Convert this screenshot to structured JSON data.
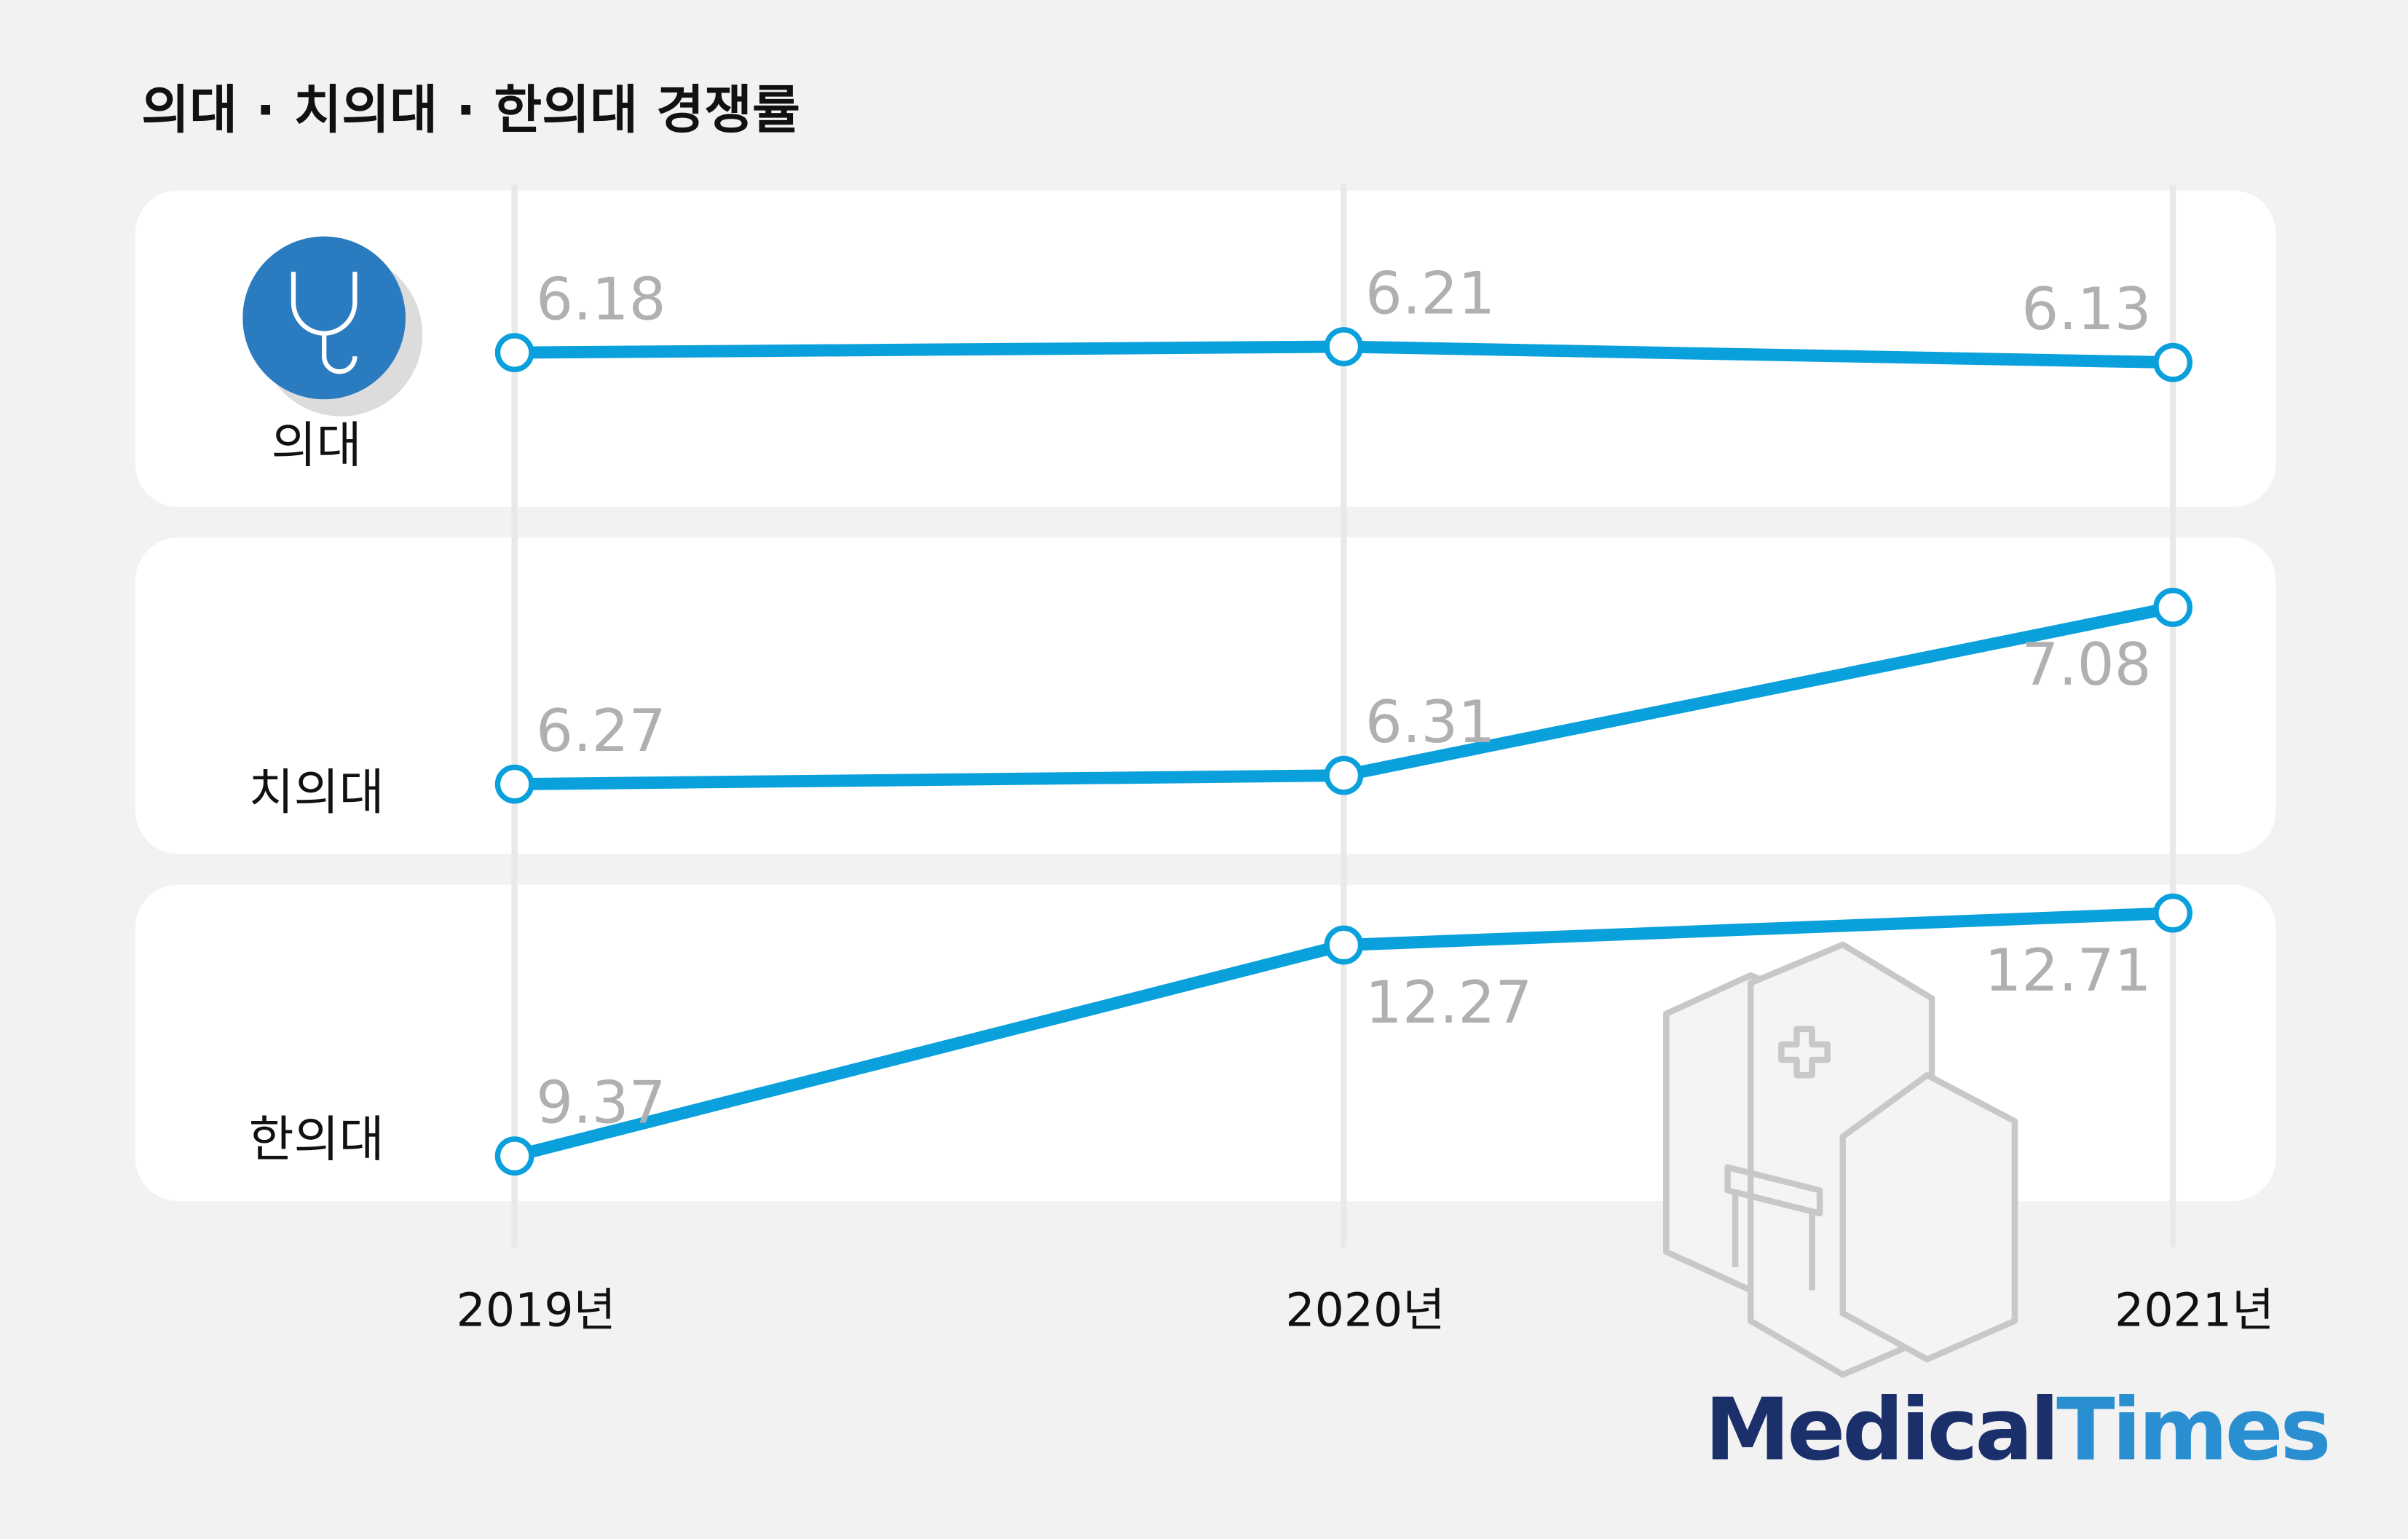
{
  "title": "의대 · 치의대 · 한의대 경쟁률",
  "brand": {
    "first": "Medical",
    "second": "Times"
  },
  "chart_data": [
    {
      "type": "line",
      "title": "의대",
      "categories": [
        "2019년",
        "2020년",
        "2021년"
      ],
      "values": [
        6.18,
        6.21,
        6.13
      ],
      "ylim": [
        5.4,
        7.0
      ],
      "color": "#0aa0dc"
    },
    {
      "type": "line",
      "title": "치의대",
      "values": [
        6.27,
        6.31,
        7.08
      ],
      "ylim": [
        5.95,
        7.4
      ],
      "color": "#0aa0dc"
    },
    {
      "type": "line",
      "title": "한의대",
      "values": [
        9.37,
        12.27,
        12.71
      ],
      "ylim": [
        8.75,
        13.1
      ],
      "color": "#0aa0dc"
    }
  ]
}
